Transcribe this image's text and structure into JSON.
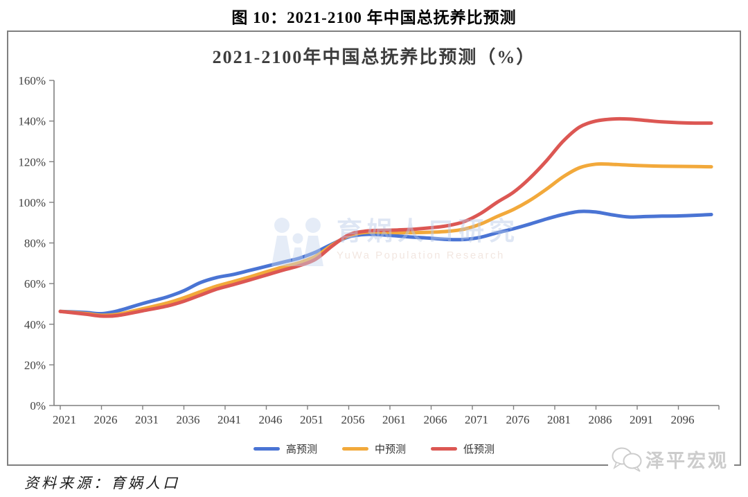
{
  "page": {
    "figure_title": "图 10：2021-2100 年中国总抚养比预测",
    "source_note": "资料来源：育娲人口",
    "brand_text": "泽平宏观"
  },
  "watermark": {
    "cn": "育娲人口研究",
    "en": "YuWa Population Research"
  },
  "chart_data": {
    "type": "line",
    "title": "2021-2100年中国总抚养比预测（%）",
    "xlabel": "",
    "ylabel": "",
    "ylim": [
      0,
      160
    ],
    "y_tick_step": 20,
    "y_ticks": [
      "0%",
      "20%",
      "40%",
      "60%",
      "80%",
      "100%",
      "120%",
      "140%",
      "160%"
    ],
    "x_range": [
      2021,
      2100
    ],
    "x_tick_labels": [
      "2021",
      "2026",
      "2031",
      "2036",
      "2041",
      "2046",
      "2051",
      "2056",
      "2061",
      "2066",
      "2071",
      "2076",
      "2081",
      "2086",
      "2091",
      "2096"
    ],
    "grid": false,
    "legend_position": "bottom",
    "axis_color": "#7f7f7f",
    "tick_label_color": "#404040",
    "x": [
      2021,
      2024,
      2026,
      2028,
      2031,
      2034,
      2036,
      2038,
      2040,
      2042,
      2044,
      2046,
      2048,
      2050,
      2052,
      2054,
      2056,
      2058,
      2060,
      2062,
      2064,
      2066,
      2068,
      2070,
      2072,
      2074,
      2076,
      2078,
      2080,
      2082,
      2084,
      2086,
      2088,
      2090,
      2092,
      2094,
      2096,
      2098,
      2100
    ],
    "series": [
      {
        "name": "高预测",
        "key": "high",
        "color": "#4a74d4",
        "values": [
          46.3,
          45.8,
          45.2,
          46.6,
          50.2,
          53.5,
          56.5,
          60.5,
          63.0,
          64.5,
          66.5,
          68.5,
          70.5,
          72.5,
          75.5,
          79.5,
          83.0,
          84.2,
          84.0,
          83.4,
          82.8,
          82.3,
          81.7,
          81.7,
          82.8,
          85.0,
          87.0,
          89.3,
          91.8,
          94.0,
          95.5,
          95.2,
          93.8,
          92.8,
          93.0,
          93.2,
          93.3,
          93.6,
          94.0
        ]
      },
      {
        "name": "中预测",
        "key": "mid",
        "color": "#f2a93b",
        "values": [
          46.3,
          45.3,
          44.4,
          44.9,
          47.6,
          50.5,
          53.0,
          56.0,
          58.8,
          61.0,
          63.3,
          65.8,
          68.2,
          70.3,
          73.5,
          79.0,
          83.5,
          85.2,
          85.3,
          85.1,
          85.1,
          85.3,
          85.7,
          86.8,
          89.3,
          93.0,
          96.5,
          101.0,
          106.5,
          112.5,
          117.0,
          118.8,
          118.7,
          118.3,
          118.0,
          117.8,
          117.7,
          117.6,
          117.5
        ]
      },
      {
        "name": "低预测",
        "key": "low",
        "color": "#dc5753",
        "values": [
          46.3,
          45.0,
          44.0,
          44.3,
          46.6,
          49.0,
          51.3,
          54.3,
          57.3,
          59.5,
          61.8,
          64.2,
          66.6,
          68.8,
          72.0,
          78.5,
          84.0,
          85.8,
          86.2,
          86.4,
          86.8,
          87.5,
          88.5,
          90.5,
          94.5,
          100.0,
          105.0,
          112.0,
          120.5,
          130.0,
          137.0,
          140.0,
          141.0,
          141.0,
          140.3,
          139.6,
          139.2,
          139.0,
          139.0
        ]
      }
    ]
  }
}
